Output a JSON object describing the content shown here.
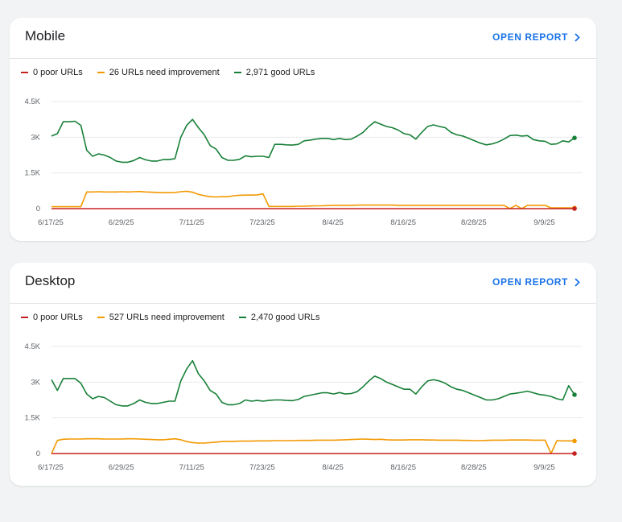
{
  "cards": [
    {
      "title": "Mobile",
      "open_report_label": "OPEN REPORT",
      "legend": [
        {
          "label": "0 poor URLs",
          "color": "#c5221f"
        },
        {
          "label": "26 URLs need improvement",
          "color": "#f29900"
        },
        {
          "label": "2,971 good URLs",
          "color": "#188038"
        }
      ]
    },
    {
      "title": "Desktop",
      "open_report_label": "OPEN REPORT",
      "legend": [
        {
          "label": "0 poor URLs",
          "color": "#c5221f"
        },
        {
          "label": "527 URLs need improvement",
          "color": "#f29900"
        },
        {
          "label": "2,470 good URLs",
          "color": "#188038"
        }
      ]
    }
  ],
  "chart_data": [
    {
      "type": "line",
      "title": "Mobile",
      "ylim": [
        0,
        4500
      ],
      "yticks": [
        "0",
        "1.5K",
        "3K",
        "4.5K"
      ],
      "xticks": [
        "6/17/25",
        "6/29/25",
        "7/11/25",
        "7/23/25",
        "8/4/25",
        "8/16/25",
        "8/28/25",
        "9/9/25"
      ],
      "grid": true,
      "legend_position": "top-left",
      "x": [
        "6/17/25",
        "6/18/25",
        "6/19/25",
        "6/20/25",
        "6/21/25",
        "6/22/25",
        "6/23/25",
        "6/24/25",
        "6/25/25",
        "6/26/25",
        "6/27/25",
        "6/28/25",
        "6/29/25",
        "6/30/25",
        "7/1/25",
        "7/2/25",
        "7/3/25",
        "7/4/25",
        "7/5/25",
        "7/6/25",
        "7/7/25",
        "7/8/25",
        "7/9/25",
        "7/10/25",
        "7/11/25",
        "7/12/25",
        "7/13/25",
        "7/14/25",
        "7/15/25",
        "7/16/25",
        "7/17/25",
        "7/18/25",
        "7/19/25",
        "7/20/25",
        "7/21/25",
        "7/22/25",
        "7/23/25",
        "7/24/25",
        "7/25/25",
        "7/26/25",
        "7/27/25",
        "7/28/25",
        "7/29/25",
        "7/30/25",
        "7/31/25",
        "8/1/25",
        "8/2/25",
        "8/3/25",
        "8/4/25",
        "8/5/25",
        "8/6/25",
        "8/7/25",
        "8/8/25",
        "8/9/25",
        "8/10/25",
        "8/11/25",
        "8/12/25",
        "8/13/25",
        "8/14/25",
        "8/15/25",
        "8/16/25",
        "8/17/25",
        "8/18/25",
        "8/19/25",
        "8/20/25",
        "8/21/25",
        "8/22/25",
        "8/23/25",
        "8/24/25",
        "8/25/25",
        "8/26/25",
        "8/27/25",
        "8/28/25",
        "8/29/25",
        "8/30/25",
        "8/31/25",
        "9/1/25",
        "9/2/25",
        "9/3/25",
        "9/4/25",
        "9/5/25",
        "9/6/25",
        "9/7/25",
        "9/8/25",
        "9/9/25",
        "9/10/25",
        "9/11/25",
        "9/12/25",
        "9/13/25",
        "9/14/25"
      ],
      "series": [
        {
          "name": "0 poor URLs",
          "color": "#c5221f",
          "values": [
            0,
            0,
            0,
            0,
            0,
            0,
            0,
            0,
            0,
            0,
            0,
            0,
            0,
            0,
            0,
            0,
            0,
            0,
            0,
            0,
            0,
            0,
            0,
            0,
            0,
            0,
            0,
            0,
            0,
            0,
            0,
            0,
            0,
            0,
            0,
            0,
            0,
            0,
            0,
            0,
            0,
            0,
            0,
            0,
            0,
            0,
            0,
            0,
            0,
            0,
            0,
            0,
            0,
            0,
            0,
            0,
            0,
            0,
            0,
            0,
            0,
            0,
            0,
            0,
            0,
            0,
            0,
            0,
            0,
            0,
            0,
            0,
            0,
            0,
            0,
            0,
            0,
            0,
            0,
            0,
            0,
            0,
            0,
            0,
            0,
            0,
            0,
            0,
            0,
            0
          ]
        },
        {
          "name": "26 URLs need improvement",
          "color": "#f29900",
          "values": [
            80,
            80,
            80,
            80,
            80,
            80,
            700,
            700,
            710,
            700,
            700,
            700,
            710,
            700,
            710,
            720,
            700,
            690,
            680,
            670,
            670,
            680,
            710,
            730,
            690,
            600,
            540,
            500,
            490,
            500,
            500,
            540,
            560,
            570,
            570,
            580,
            620,
            90,
            90,
            90,
            90,
            90,
            100,
            100,
            110,
            120,
            120,
            130,
            140,
            140,
            140,
            140,
            150,
            150,
            150,
            150,
            150,
            150,
            150,
            140,
            140,
            140,
            140,
            140,
            140,
            140,
            140,
            140,
            140,
            140,
            140,
            140,
            140,
            140,
            140,
            140,
            140,
            140,
            0,
            140,
            0,
            140,
            140,
            140,
            140,
            30,
            30,
            30,
            30,
            26
          ]
        },
        {
          "name": "2,971 good URLs",
          "color": "#188038",
          "values": [
            3050,
            3150,
            3650,
            3650,
            3670,
            3500,
            2450,
            2200,
            2300,
            2250,
            2150,
            2000,
            1950,
            1950,
            2020,
            2150,
            2050,
            2000,
            2000,
            2060,
            2060,
            2100,
            3000,
            3500,
            3750,
            3400,
            3100,
            2650,
            2500,
            2150,
            2030,
            2030,
            2070,
            2220,
            2180,
            2200,
            2200,
            2150,
            2700,
            2700,
            2680,
            2670,
            2700,
            2850,
            2880,
            2920,
            2950,
            2950,
            2900,
            2950,
            2900,
            2920,
            3050,
            3200,
            3450,
            3650,
            3550,
            3450,
            3400,
            3300,
            3150,
            3100,
            2920,
            3200,
            3450,
            3520,
            3450,
            3400,
            3200,
            3100,
            3050,
            2950,
            2850,
            2750,
            2680,
            2720,
            2800,
            2920,
            3070,
            3090,
            3050,
            3070,
            2900,
            2850,
            2830,
            2700,
            2720,
            2850,
            2800,
            2971
          ]
        }
      ]
    },
    {
      "type": "line",
      "title": "Desktop",
      "ylim": [
        0,
        4500
      ],
      "yticks": [
        "0",
        "1.5K",
        "3K",
        "4.5K"
      ],
      "xticks": [
        "6/17/25",
        "6/29/25",
        "7/11/25",
        "7/23/25",
        "8/4/25",
        "8/16/25",
        "8/28/25",
        "9/9/25"
      ],
      "grid": true,
      "legend_position": "top-left",
      "x": [
        "6/17/25",
        "6/18/25",
        "6/19/25",
        "6/20/25",
        "6/21/25",
        "6/22/25",
        "6/23/25",
        "6/24/25",
        "6/25/25",
        "6/26/25",
        "6/27/25",
        "6/28/25",
        "6/29/25",
        "6/30/25",
        "7/1/25",
        "7/2/25",
        "7/3/25",
        "7/4/25",
        "7/5/25",
        "7/6/25",
        "7/7/25",
        "7/8/25",
        "7/9/25",
        "7/10/25",
        "7/11/25",
        "7/12/25",
        "7/13/25",
        "7/14/25",
        "7/15/25",
        "7/16/25",
        "7/17/25",
        "7/18/25",
        "7/19/25",
        "7/20/25",
        "7/21/25",
        "7/22/25",
        "7/23/25",
        "7/24/25",
        "7/25/25",
        "7/26/25",
        "7/27/25",
        "7/28/25",
        "7/29/25",
        "7/30/25",
        "7/31/25",
        "8/1/25",
        "8/2/25",
        "8/3/25",
        "8/4/25",
        "8/5/25",
        "8/6/25",
        "8/7/25",
        "8/8/25",
        "8/9/25",
        "8/10/25",
        "8/11/25",
        "8/12/25",
        "8/13/25",
        "8/14/25",
        "8/15/25",
        "8/16/25",
        "8/17/25",
        "8/18/25",
        "8/19/25",
        "8/20/25",
        "8/21/25",
        "8/22/25",
        "8/23/25",
        "8/24/25",
        "8/25/25",
        "8/26/25",
        "8/27/25",
        "8/28/25",
        "8/29/25",
        "8/30/25",
        "8/31/25",
        "9/1/25",
        "9/2/25",
        "9/3/25",
        "9/4/25",
        "9/5/25",
        "9/6/25",
        "9/7/25",
        "9/8/25",
        "9/9/25",
        "9/10/25",
        "9/11/25",
        "9/12/25",
        "9/13/25",
        "9/14/25"
      ],
      "series": [
        {
          "name": "0 poor URLs",
          "color": "#c5221f",
          "values": [
            0,
            0,
            0,
            0,
            0,
            0,
            0,
            0,
            0,
            0,
            0,
            0,
            0,
            0,
            0,
            0,
            0,
            0,
            0,
            0,
            0,
            0,
            0,
            0,
            0,
            0,
            0,
            0,
            0,
            0,
            0,
            0,
            0,
            0,
            0,
            0,
            0,
            0,
            0,
            0,
            0,
            0,
            0,
            0,
            0,
            0,
            0,
            0,
            0,
            0,
            0,
            0,
            0,
            0,
            0,
            0,
            0,
            0,
            0,
            0,
            0,
            0,
            0,
            0,
            0,
            0,
            0,
            0,
            0,
            0,
            0,
            0,
            0,
            0,
            0,
            0,
            0,
            0,
            0,
            0,
            0,
            0,
            0,
            0,
            0,
            0,
            0,
            0,
            0,
            0
          ]
        },
        {
          "name": "527 URLs need improvement",
          "color": "#f29900",
          "values": [
            0,
            550,
            600,
            610,
            610,
            610,
            620,
            620,
            620,
            610,
            610,
            610,
            610,
            620,
            620,
            610,
            600,
            590,
            580,
            580,
            600,
            620,
            580,
            500,
            460,
            440,
            440,
            460,
            480,
            500,
            510,
            510,
            520,
            520,
            520,
            530,
            530,
            530,
            540,
            540,
            540,
            540,
            550,
            550,
            550,
            560,
            560,
            560,
            560,
            570,
            580,
            590,
            600,
            610,
            600,
            590,
            600,
            580,
            570,
            570,
            570,
            580,
            580,
            580,
            570,
            570,
            560,
            560,
            560,
            560,
            550,
            550,
            540,
            540,
            550,
            560,
            560,
            560,
            570,
            570,
            570,
            570,
            560,
            560,
            560,
            0,
            540,
            530,
            530,
            527
          ]
        },
        {
          "name": "2,470 good URLs",
          "color": "#188038",
          "values": [
            3100,
            2650,
            3150,
            3150,
            3150,
            2950,
            2500,
            2300,
            2400,
            2350,
            2200,
            2050,
            2000,
            2000,
            2100,
            2250,
            2150,
            2100,
            2100,
            2150,
            2200,
            2200,
            3050,
            3550,
            3900,
            3350,
            3050,
            2650,
            2500,
            2150,
            2050,
            2050,
            2100,
            2250,
            2200,
            2230,
            2200,
            2230,
            2250,
            2250,
            2230,
            2220,
            2270,
            2400,
            2450,
            2500,
            2550,
            2550,
            2500,
            2560,
            2500,
            2520,
            2600,
            2800,
            3050,
            3250,
            3150,
            3000,
            2900,
            2800,
            2700,
            2700,
            2500,
            2800,
            3050,
            3100,
            3050,
            2950,
            2800,
            2700,
            2650,
            2550,
            2450,
            2350,
            2250,
            2250,
            2300,
            2400,
            2500,
            2530,
            2570,
            2620,
            2550,
            2480,
            2450,
            2400,
            2300,
            2250,
            2850,
            2470
          ]
        }
      ]
    }
  ]
}
